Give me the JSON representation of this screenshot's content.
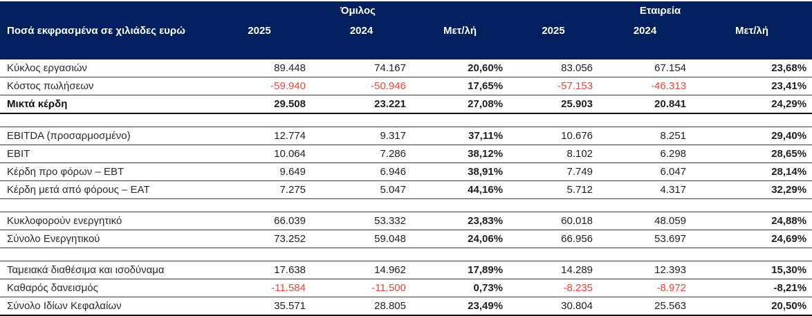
{
  "table": {
    "unit_label": "Ποσά εκφρασμένα σε χιλιάδες ευρώ",
    "column_groups": {
      "left": "Όμιλος",
      "right": "Εταιρεία"
    },
    "subcolumns": [
      "2025",
      "2024",
      "Μετ/λή",
      "2025",
      "2024",
      "Μετ/λή"
    ],
    "rows": [
      {
        "label": "Κύκλος εργασιών",
        "values": [
          "89.448",
          "74.167",
          "20,60%",
          "83.056",
          "67.154",
          "23,68%"
        ]
      },
      {
        "label": "Κόστος πωλήσεων",
        "values": [
          "-59.940",
          "-50.946",
          "17,65%",
          "-57.153",
          "-46.313",
          "23,41%"
        ]
      },
      {
        "label": "Μικτά κέρδη",
        "values": [
          "29.508",
          "23.221",
          "27,08%",
          "25.903",
          "20.841",
          "24,29%"
        ]
      },
      {
        "label": "EBITDA (προσαρμοσμένο)",
        "values": [
          "12.774",
          "9.317",
          "37,11%",
          "10.676",
          "8.251",
          "29,40%"
        ]
      },
      {
        "label": "EBIT",
        "values": [
          "10.064",
          "7.286",
          "38,12%",
          "8.102",
          "6.298",
          "28,65%"
        ]
      },
      {
        "label": "Κέρδη προ φόρων – EBT",
        "values": [
          "9.649",
          "6.946",
          "38,91%",
          "7.749",
          "6.047",
          "28,14%"
        ]
      },
      {
        "label": "Κέρδη μετά από φόρους – EAT",
        "values": [
          "7.275",
          "5.047",
          "44,16%",
          "5.712",
          "4.317",
          "32,29%"
        ]
      },
      {
        "label": "Κυκλοφορούν ενεργητικό",
        "values": [
          "66.039",
          "53.332",
          "23,83%",
          "60.018",
          "48.059",
          "24,88%"
        ]
      },
      {
        "label": "Σύνολο Ενεργητικού",
        "values": [
          "73.252",
          "59.048",
          "24,06%",
          "66.956",
          "53.697",
          "24,69%"
        ]
      },
      {
        "label": "Ταμειακά διαθέσιμα και ισοδύναμα",
        "values": [
          "17.638",
          "14.962",
          "17,89%",
          "14.289",
          "12.393",
          "15,30%"
        ]
      },
      {
        "label": "Καθαρός δανεισμός",
        "values": [
          "-11.584",
          "-11.500",
          "0,73%",
          "-8.235",
          "-8.972",
          "-8,21%"
        ]
      },
      {
        "label": "Σύνολο Ιδίων Κεφαλαίων",
        "values": [
          "35.571",
          "28.805",
          "23,49%",
          "30.804",
          "25.563",
          "20,50%"
        ]
      }
    ],
    "colors": {
      "header_bg": "#02205e",
      "header_text": "#ffffff",
      "negative_value": "#f04438",
      "body_text": "#1f1f1f",
      "row_rule": "#3a3a3a",
      "strong_rule": "#101010"
    }
  }
}
